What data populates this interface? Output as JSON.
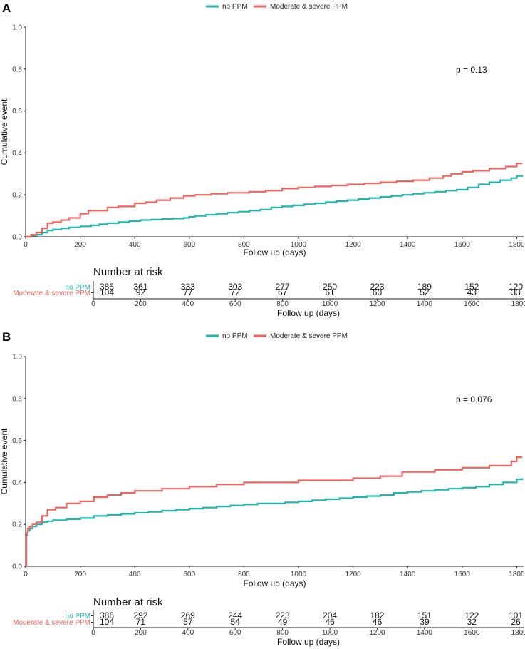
{
  "colors": {
    "no_ppm": "#1fb5b0",
    "mod_sev": "#f0645c",
    "axis": "#222222"
  },
  "chart_data": [
    {
      "panel": "A",
      "type": "line",
      "legend_placement": "top",
      "series": [
        {
          "name": "no PPM",
          "color": "#1fb5b0",
          "x": [
            0,
            20,
            40,
            60,
            80,
            100,
            130,
            160,
            200,
            240,
            270,
            300,
            340,
            380,
            420,
            460,
            500,
            540,
            580,
            600,
            620,
            660,
            700,
            740,
            780,
            820,
            860,
            900,
            940,
            980,
            1020,
            1060,
            1100,
            1140,
            1180,
            1220,
            1260,
            1300,
            1340,
            1380,
            1420,
            1460,
            1500,
            1540,
            1580,
            1620,
            1660,
            1700,
            1740,
            1780,
            1800,
            1820
          ],
          "y": [
            0,
            0.005,
            0.01,
            0.02,
            0.03,
            0.035,
            0.04,
            0.045,
            0.05,
            0.055,
            0.06,
            0.065,
            0.07,
            0.075,
            0.08,
            0.082,
            0.085,
            0.087,
            0.09,
            0.095,
            0.1,
            0.105,
            0.11,
            0.115,
            0.12,
            0.125,
            0.13,
            0.14,
            0.145,
            0.15,
            0.155,
            0.16,
            0.165,
            0.17,
            0.175,
            0.18,
            0.185,
            0.19,
            0.195,
            0.2,
            0.205,
            0.21,
            0.215,
            0.22,
            0.225,
            0.235,
            0.25,
            0.26,
            0.27,
            0.28,
            0.29,
            0.295
          ]
        },
        {
          "name": "Moderate & severe PPM",
          "color": "#f0645c",
          "x": [
            0,
            20,
            40,
            60,
            80,
            100,
            130,
            160,
            200,
            230,
            300,
            340,
            400,
            440,
            480,
            530,
            580,
            620,
            680,
            740,
            820,
            880,
            940,
            1000,
            1060,
            1120,
            1180,
            1240,
            1300,
            1360,
            1420,
            1480,
            1530,
            1560,
            1600,
            1640,
            1700,
            1760,
            1800,
            1820
          ],
          "y": [
            0,
            0.01,
            0.02,
            0.04,
            0.065,
            0.07,
            0.08,
            0.09,
            0.11,
            0.125,
            0.14,
            0.145,
            0.16,
            0.165,
            0.175,
            0.185,
            0.195,
            0.2,
            0.205,
            0.21,
            0.215,
            0.22,
            0.23,
            0.235,
            0.24,
            0.245,
            0.25,
            0.255,
            0.26,
            0.265,
            0.27,
            0.28,
            0.29,
            0.3,
            0.31,
            0.315,
            0.325,
            0.335,
            0.35,
            0.35
          ]
        }
      ],
      "xlabel": "Follow up (days)",
      "ylabel": "Cumulative event",
      "xlim": [
        0,
        1825
      ],
      "ylim": [
        0,
        1.0
      ],
      "xticks": [
        0,
        200,
        400,
        600,
        800,
        1000,
        1200,
        1400,
        1600,
        1800
      ],
      "yticks": [
        "0.0",
        "0.2",
        "0.4",
        "0.6",
        "0.8",
        "1.0"
      ],
      "pvalue": "p = 0.13",
      "risk_table": {
        "title": "Number at risk",
        "xlabel": "Follow up (days)",
        "rows": [
          {
            "label": "no PPM",
            "color": "#1fb5b0",
            "values": [
              "385",
              "361",
              "333",
              "303",
              "277",
              "250",
              "223",
              "189",
              "152",
              "120"
            ]
          },
          {
            "label": "Moderate & severe PPM",
            "color": "#f0645c",
            "values": [
              "104",
              "92",
              "77",
              "72",
              "67",
              "61",
              "60",
              "52",
              "43",
              "33"
            ]
          }
        ]
      }
    },
    {
      "panel": "B",
      "type": "line",
      "legend_placement": "top",
      "series": [
        {
          "name": "no PPM",
          "color": "#1fb5b0",
          "x": [
            0,
            3,
            8,
            15,
            25,
            40,
            60,
            80,
            100,
            150,
            200,
            250,
            300,
            350,
            400,
            450,
            500,
            550,
            600,
            650,
            700,
            750,
            800,
            850,
            900,
            950,
            1000,
            1050,
            1100,
            1150,
            1200,
            1250,
            1300,
            1350,
            1400,
            1450,
            1500,
            1550,
            1600,
            1650,
            1700,
            1750,
            1800,
            1820
          ],
          "y": [
            0,
            0.15,
            0.17,
            0.18,
            0.19,
            0.2,
            0.21,
            0.215,
            0.22,
            0.225,
            0.23,
            0.24,
            0.245,
            0.25,
            0.255,
            0.26,
            0.265,
            0.27,
            0.275,
            0.28,
            0.285,
            0.29,
            0.295,
            0.3,
            0.3,
            0.305,
            0.31,
            0.315,
            0.32,
            0.325,
            0.33,
            0.335,
            0.34,
            0.35,
            0.355,
            0.36,
            0.365,
            0.37,
            0.375,
            0.38,
            0.39,
            0.4,
            0.415,
            0.42
          ]
        },
        {
          "name": "Moderate & severe PPM",
          "color": "#f0645c",
          "x": [
            0,
            3,
            8,
            15,
            25,
            40,
            60,
            80,
            110,
            150,
            200,
            250,
            300,
            350,
            400,
            500,
            600,
            700,
            800,
            900,
            1000,
            1100,
            1200,
            1300,
            1380,
            1450,
            1500,
            1600,
            1700,
            1780,
            1800,
            1820
          ],
          "y": [
            0,
            0.16,
            0.18,
            0.19,
            0.2,
            0.21,
            0.24,
            0.27,
            0.28,
            0.3,
            0.31,
            0.33,
            0.34,
            0.35,
            0.36,
            0.37,
            0.38,
            0.39,
            0.4,
            0.4,
            0.41,
            0.41,
            0.42,
            0.43,
            0.45,
            0.45,
            0.46,
            0.47,
            0.48,
            0.5,
            0.52,
            0.52
          ]
        }
      ],
      "xlabel": "Follow up (days)",
      "ylabel": "Cumulative event",
      "xlim": [
        0,
        1825
      ],
      "ylim": [
        0,
        1.0
      ],
      "xticks": [
        0,
        200,
        400,
        600,
        800,
        1000,
        1200,
        1400,
        1600,
        1800
      ],
      "yticks": [
        "0.0",
        "0.2",
        "0.4",
        "0.6",
        "0.8",
        "1.0"
      ],
      "pvalue": "p = 0.076",
      "risk_table": {
        "title": "Number at risk",
        "xlabel": "Follow up (days)",
        "rows": [
          {
            "label": "no PPM",
            "color": "#1fb5b0",
            "values": [
              "386",
              "292",
              "269",
              "244",
              "223",
              "204",
              "182",
              "151",
              "122",
              "101"
            ]
          },
          {
            "label": "Moderate & severe PPM",
            "color": "#f0645c",
            "values": [
              "104",
              "71",
              "57",
              "54",
              "49",
              "46",
              "46",
              "39",
              "32",
              "26"
            ]
          }
        ]
      }
    }
  ]
}
